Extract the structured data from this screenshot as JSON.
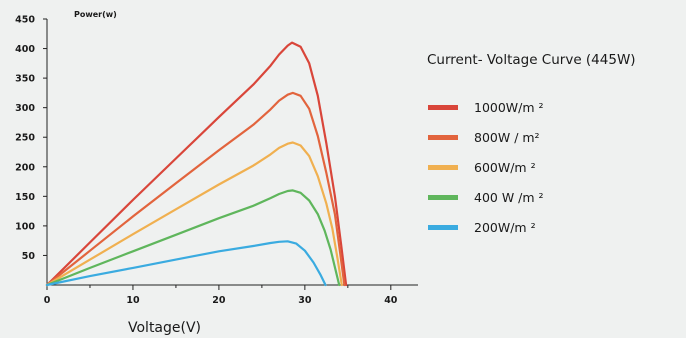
{
  "chart_data": {
    "type": "line",
    "title": "Current-  Voltage Curve (445W)",
    "xlabel": "Voltage(V)",
    "ylabel": "Power(w)",
    "xlim": [
      0,
      42
    ],
    "ylim": [
      0,
      450
    ],
    "xticks": [
      0,
      10,
      20,
      30,
      40
    ],
    "yticks": [
      50,
      100,
      150,
      200,
      250,
      300,
      350,
      400,
      450
    ],
    "grid": false,
    "legend": "right",
    "series": [
      {
        "name": "1000W/m  ²",
        "color": "#d9463a",
        "x": [
          0,
          5,
          10,
          15,
          20,
          24,
          26,
          27,
          28,
          28.5,
          29.5,
          30.5,
          31.5,
          32.5,
          33.5,
          34.2,
          34.8
        ],
        "y": [
          0,
          72,
          144,
          214,
          284,
          339,
          371,
          390,
          405,
          410,
          403,
          375,
          320,
          240,
          150,
          70,
          0
        ]
      },
      {
        "name": "800W / m²",
        "color": "#e2643d",
        "x": [
          0,
          5,
          10,
          15,
          20,
          24,
          26,
          27,
          28,
          28.6,
          29.5,
          30.5,
          31.5,
          32.5,
          33.5,
          34.1,
          34.6
        ],
        "y": [
          0,
          58,
          116,
          172,
          228,
          271,
          297,
          312,
          322,
          325,
          320,
          298,
          252,
          190,
          120,
          55,
          0
        ]
      },
      {
        "name": "600W/m  ²",
        "color": "#f0b050",
        "x": [
          0,
          5,
          10,
          15,
          20,
          24,
          26,
          27,
          28,
          28.6,
          29.5,
          30.5,
          31.5,
          32.5,
          33.2,
          33.8,
          34.3
        ],
        "y": [
          0,
          43,
          86,
          128,
          170,
          202,
          221,
          232,
          239,
          241,
          236,
          218,
          184,
          138,
          95,
          45,
          0
        ]
      },
      {
        "name": "400 W /m ²",
        "color": "#5fb65c",
        "x": [
          0,
          5,
          10,
          15,
          20,
          24,
          26,
          27,
          28,
          28.6,
          29.5,
          30.5,
          31.5,
          32.3,
          33,
          33.5,
          34
        ],
        "y": [
          0,
          29,
          57,
          85,
          113,
          134,
          147,
          154,
          159,
          160,
          156,
          143,
          120,
          92,
          60,
          30,
          0
        ]
      },
      {
        "name": "200W/m ²",
        "color": "#3aabe0",
        "x": [
          0,
          5,
          10,
          15,
          20,
          24,
          26,
          27,
          28,
          29,
          30,
          31,
          31.8,
          32.4
        ],
        "y": [
          0,
          15,
          29,
          43,
          57,
          66,
          71,
          73,
          74,
          70,
          58,
          38,
          18,
          0
        ]
      }
    ]
  }
}
